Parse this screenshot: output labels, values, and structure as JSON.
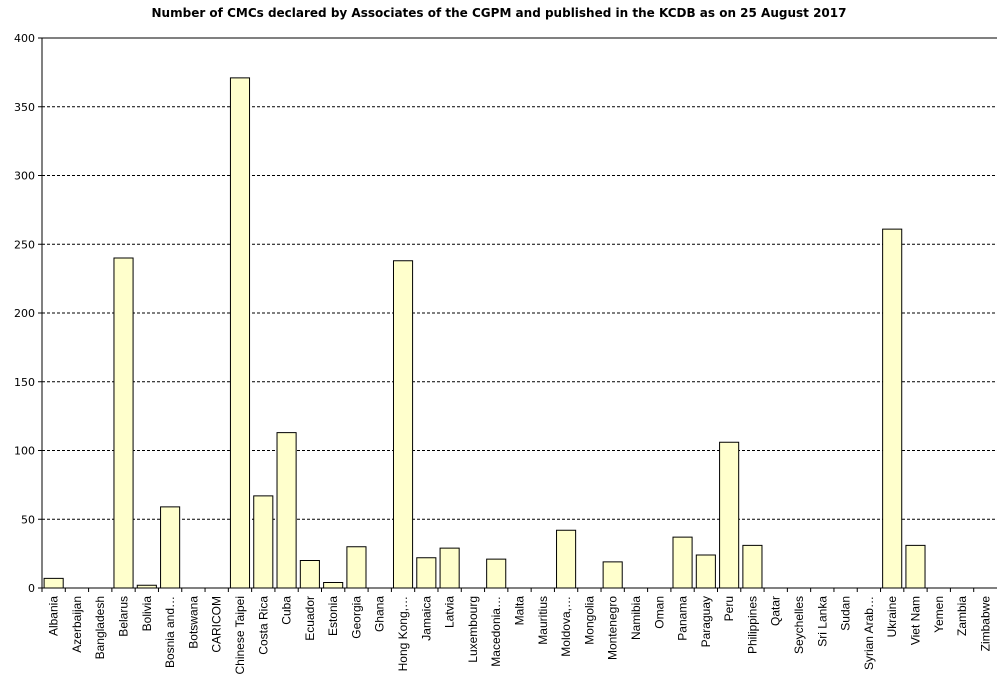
{
  "chart_data": {
    "type": "bar",
    "title": "Number of CMCs declared by Associates of the CGPM and published in the KCDB as on 25 August 2017",
    "xlabel": "",
    "ylabel": "",
    "ylim": [
      0,
      400
    ],
    "yticks": [
      0,
      50,
      100,
      150,
      200,
      250,
      300,
      350,
      400
    ],
    "grid": true,
    "legend": "none",
    "bar_color": "#ffffcc",
    "bar_stroke": "#000000",
    "categories": [
      "Albania",
      "Azerbaijan",
      "Bangladesh",
      "Belarus",
      "Bolivia",
      "Bosnia and…",
      "Botswana",
      "CARICOM",
      "Chinese Taipei",
      "Costa Rica",
      "Cuba",
      "Ecuador",
      "Estonia",
      "Georgia",
      "Ghana",
      "Hong Kong,…",
      "Jamaica",
      "Latvia",
      "Luxembourg",
      "Macedonia…",
      "Malta",
      "Mauritius",
      "Moldova,…",
      "Mongolia",
      "Montenegro",
      "Namibia",
      "Oman",
      "Panama",
      "Paraguay",
      "Peru",
      "Philippines",
      "Qatar",
      "Seychelles",
      "Sri Lanka",
      "Sudan",
      "Syrian Arab…",
      "Ukraine",
      "Viet Nam",
      "Yemen",
      "Zambia",
      "Zimbabwe"
    ],
    "values": [
      7,
      0,
      0,
      240,
      2,
      59,
      0,
      0,
      371,
      67,
      113,
      20,
      4,
      30,
      0,
      238,
      22,
      29,
      0,
      21,
      0,
      0,
      42,
      0,
      19,
      0,
      0,
      37,
      24,
      106,
      31,
      0,
      0,
      0,
      0,
      0,
      261,
      31,
      0,
      0,
      0
    ]
  }
}
